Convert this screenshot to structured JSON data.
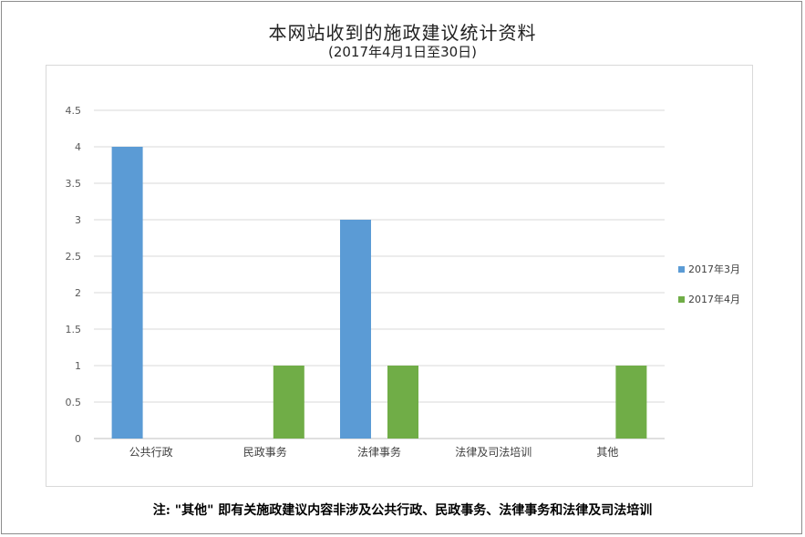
{
  "chart_data": {
    "type": "bar",
    "title": "本网站收到的施政建议统计资料",
    "subtitle": "(2017年4月1日至30日)",
    "categories": [
      "公共行政",
      "民政事务",
      "法律事务",
      "法律及司法培训",
      "其他"
    ],
    "series": [
      {
        "name": "2017年3月",
        "color": "#5b9bd5",
        "values": [
          4,
          0,
          3,
          0,
          0
        ]
      },
      {
        "name": "2017年4月",
        "color": "#70ad47",
        "values": [
          0,
          1,
          1,
          0,
          1
        ]
      }
    ],
    "ylim": [
      0,
      4.5
    ],
    "yticks": [
      "0",
      "0.5",
      "1",
      "1.5",
      "2",
      "2.5",
      "3",
      "3.5",
      "4",
      "4.5"
    ],
    "grid": true,
    "legend_position": "right"
  },
  "note": "注: \"其他\" 即有关施政建议内容非涉及公共行政、民政事务、法律事务和法律及司法培训"
}
